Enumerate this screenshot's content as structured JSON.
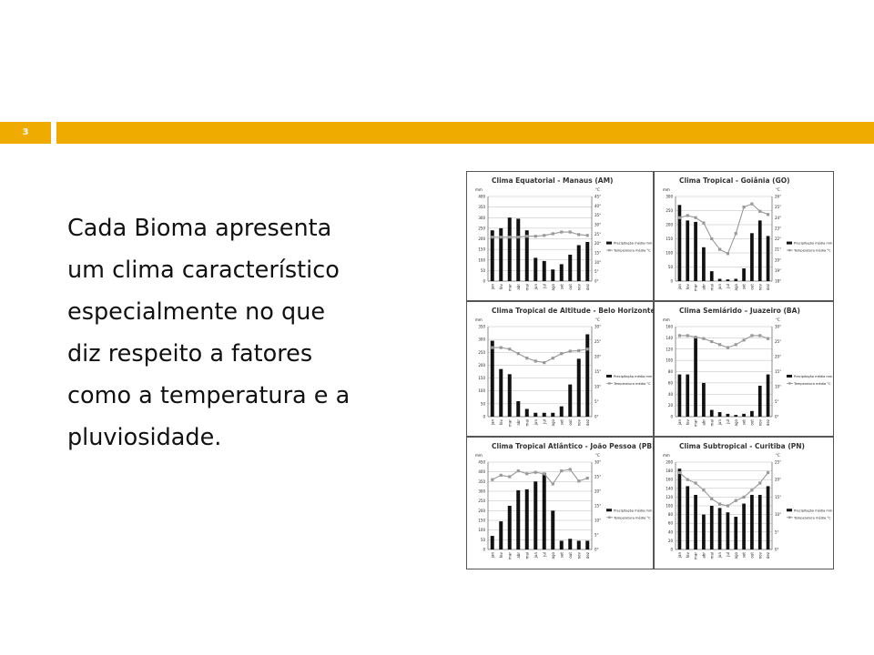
{
  "slide": {
    "number": "3",
    "accent": "#efab00"
  },
  "body_lines": [
    "Cada Bioma apresenta",
    "um clima característico",
    "especialmente no que",
    "diz respeito a fatores",
    "como a temperatura e a",
    "pluviosidade."
  ],
  "chart_data": [
    {
      "type": "bar",
      "title": "Clima Equatorial - Manaus (AM)",
      "categories": [
        "jan",
        "fev",
        "mar",
        "abr",
        "mai",
        "jun",
        "jul",
        "ago",
        "set",
        "out",
        "nov",
        "dez"
      ],
      "ylabel": "mm",
      "y2label": "°C",
      "ylim": [
        0,
        400
      ],
      "yticks": [
        0,
        50,
        100,
        150,
        200,
        250,
        300,
        350,
        400
      ],
      "y2lim": [
        0,
        50
      ],
      "y2ticks": [
        "0°",
        "5°",
        "10°",
        "15°",
        "20°",
        "25°",
        "30°",
        "35°",
        "40°",
        "45°"
      ],
      "series": [
        {
          "name": "Precipitação média mm",
          "kind": "bar",
          "values": [
            240,
            250,
            300,
            295,
            240,
            110,
            95,
            55,
            80,
            125,
            170,
            185
          ]
        },
        {
          "name": "Temperatura média °C",
          "kind": "line",
          "axis": "right",
          "values": [
            26,
            26,
            26,
            26,
            26.5,
            26.5,
            27,
            28,
            29,
            29,
            27.5,
            27
          ]
        }
      ]
    },
    {
      "type": "bar",
      "title": "Clima Tropical - Goiânia (GO)",
      "categories": [
        "jan",
        "fev",
        "mar",
        "abr",
        "mai",
        "jun",
        "jul",
        "ago",
        "set",
        "out",
        "nov",
        "dez"
      ],
      "ylabel": "mm",
      "y2label": "°C",
      "ylim": [
        0,
        300
      ],
      "yticks": [
        0,
        50,
        100,
        150,
        200,
        250,
        300
      ],
      "y2lim": [
        18,
        26
      ],
      "y2ticks": [
        "18°",
        "19°",
        "20°",
        "21°",
        "22°",
        "23°",
        "24°",
        "25°",
        "26°"
      ],
      "series": [
        {
          "name": "Precipitação média mm",
          "kind": "bar",
          "values": [
            270,
            215,
            210,
            120,
            35,
            8,
            6,
            8,
            45,
            170,
            215,
            160
          ]
        },
        {
          "name": "Temperatura média °C",
          "kind": "line",
          "axis": "right",
          "values": [
            24,
            24.2,
            24,
            23.5,
            22,
            21,
            20.6,
            22.5,
            25,
            25.3,
            24.6,
            24.3
          ]
        }
      ]
    },
    {
      "type": "bar",
      "title": "Clima Tropical de Altitude - Belo Horizonte (MG)",
      "categories": [
        "jan",
        "fev",
        "mar",
        "abr",
        "mai",
        "jun",
        "jul",
        "ago",
        "set",
        "out",
        "nov",
        "dez"
      ],
      "ylabel": "mm",
      "y2label": "°C",
      "ylim": [
        0,
        350
      ],
      "yticks": [
        0,
        50,
        100,
        150,
        200,
        250,
        300,
        350
      ],
      "y2lim": [
        0,
        30
      ],
      "y2ticks": [
        "0°",
        "5°",
        "10°",
        "15°",
        "20°",
        "25°",
        "30°"
      ],
      "series": [
        {
          "name": "Precipitação média mm",
          "kind": "bar",
          "values": [
            295,
            185,
            165,
            60,
            30,
            15,
            15,
            15,
            40,
            125,
            225,
            320
          ]
        },
        {
          "name": "Temperatura média °C",
          "kind": "line",
          "axis": "right",
          "values": [
            23,
            23,
            22.5,
            21,
            19.5,
            18.5,
            18,
            19.5,
            21,
            21.8,
            22,
            22.5
          ]
        }
      ]
    },
    {
      "type": "bar",
      "title": "Clima Semiárido – Juazeiro (BA)",
      "categories": [
        "jan",
        "fev",
        "mar",
        "abr",
        "mai",
        "jun",
        "jul",
        "ago",
        "set",
        "out",
        "nov",
        "dez"
      ],
      "ylabel": "mm",
      "y2label": "°C",
      "ylim": [
        0,
        160
      ],
      "yticks": [
        0,
        20,
        40,
        60,
        80,
        100,
        120,
        140,
        160
      ],
      "y2lim": [
        0,
        30
      ],
      "y2ticks": [
        "0°",
        "5°",
        "10°",
        "15°",
        "20°",
        "25°",
        "30°"
      ],
      "series": [
        {
          "name": "Precipitação média mm",
          "kind": "bar",
          "values": [
            75,
            75,
            140,
            60,
            12,
            8,
            5,
            3,
            5,
            10,
            55,
            75
          ]
        },
        {
          "name": "Temperatura média °C",
          "kind": "line",
          "axis": "right",
          "values": [
            27,
            27,
            26.5,
            26,
            25,
            24,
            23,
            24,
            25.5,
            27,
            27,
            26
          ]
        }
      ]
    },
    {
      "type": "bar",
      "title": "Clima Tropical Atlântico - João Pessoa (PB)",
      "categories": [
        "jan",
        "fev",
        "mar",
        "abr",
        "mai",
        "jun",
        "jul",
        "ago",
        "set",
        "out",
        "nov",
        "dez"
      ],
      "ylabel": "mm",
      "y2label": "°C",
      "ylim": [
        0,
        450
      ],
      "yticks": [
        0,
        50,
        100,
        150,
        200,
        250,
        300,
        350,
        400,
        450
      ],
      "y2lim": [
        0,
        30
      ],
      "y2ticks": [
        "0°",
        "5°",
        "10°",
        "15°",
        "20°",
        "25°",
        "30°"
      ],
      "series": [
        {
          "name": "Precipitação média mm",
          "kind": "bar",
          "values": [
            70,
            145,
            225,
            305,
            310,
            350,
            395,
            200,
            45,
            55,
            45,
            45
          ]
        },
        {
          "name": "Temperatura média °C",
          "kind": "line",
          "axis": "right",
          "values": [
            24,
            25.5,
            25,
            27,
            26,
            26.5,
            26,
            22.5,
            27,
            27.5,
            23.5,
            24.5
          ]
        }
      ]
    },
    {
      "type": "bar",
      "title": "Clima Subtropical - Curitiba (PN)",
      "categories": [
        "jan",
        "fev",
        "mar",
        "abr",
        "mai",
        "jun",
        "jul",
        "ago",
        "set",
        "out",
        "nov",
        "dez"
      ],
      "ylabel": "mm",
      "y2label": "°C",
      "ylim": [
        0,
        200
      ],
      "yticks": [
        0,
        20,
        40,
        60,
        80,
        100,
        120,
        140,
        160,
        180,
        200
      ],
      "y2lim": [
        0,
        25
      ],
      "y2ticks": [
        "0°",
        "5°",
        "10°",
        "15°",
        "20°",
        "25°"
      ],
      "series": [
        {
          "name": "Precipitação média mm",
          "kind": "bar",
          "values": [
            185,
            145,
            125,
            80,
            100,
            95,
            85,
            75,
            105,
            125,
            125,
            145
          ]
        },
        {
          "name": "Temperatura média °C",
          "kind": "line",
          "axis": "right",
          "values": [
            22,
            20,
            19,
            17,
            14.5,
            13,
            12.5,
            14,
            15,
            17,
            19,
            22
          ]
        }
      ]
    }
  ]
}
